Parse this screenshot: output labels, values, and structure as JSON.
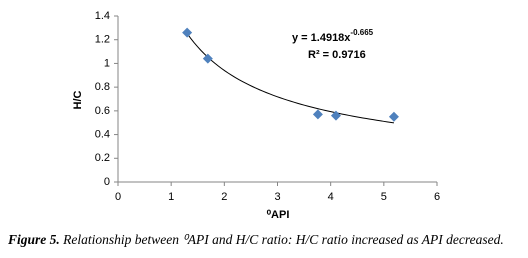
{
  "chart_data": {
    "type": "scatter",
    "x_label": "⁰API",
    "y_label": "H/C",
    "series": [
      {
        "name": "H/C",
        "color": "#4f81bd",
        "x": [
          1.3,
          1.69,
          3.76,
          4.1,
          5.19
        ],
        "values": [
          1.26,
          1.04,
          0.57,
          0.56,
          0.55
        ]
      }
    ],
    "xlim": [
      0,
      6
    ],
    "xticks": [
      0,
      1,
      2,
      3,
      4,
      5,
      6
    ],
    "ylim": [
      0,
      1.4
    ],
    "yticks": [
      0,
      0.2,
      0.4,
      0.6,
      0.8,
      1,
      1.2,
      1.4
    ],
    "grid": false,
    "trendline": {
      "kind": "power",
      "coefficient": 1.4918,
      "exponent": -0.665,
      "r_squared": 0.9716,
      "color": "#000000"
    },
    "equation": "y = 1.4918x",
    "equation_exponent": "-0.665",
    "r_squared_label": "R² = 0.9716"
  },
  "caption": {
    "label": "Figure 5.",
    "text": " Relationship between ⁰API and H/C ratio: H/C ratio increased as API decreased."
  }
}
